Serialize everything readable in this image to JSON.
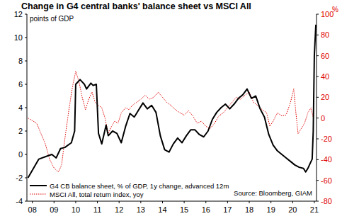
{
  "chart_data": {
    "type": "line",
    "title": "Change in G4 central banks' balance sheet vs MSCI All",
    "ylabel": "points of GDP",
    "y2label": "%",
    "source": "Source: Bloomberg, GIAM",
    "legend": "bottom-left",
    "grid": false,
    "xlim": [
      2007.75,
      2021.1
    ],
    "xticks": [
      {
        "value": 2008,
        "label": "08"
      },
      {
        "value": 2009,
        "label": "09"
      },
      {
        "value": 2010,
        "label": "10"
      },
      {
        "value": 2011,
        "label": "11"
      },
      {
        "value": 2012,
        "label": "12"
      },
      {
        "value": 2013,
        "label": "13"
      },
      {
        "value": 2014,
        "label": "14"
      },
      {
        "value": 2015,
        "label": "15"
      },
      {
        "value": 2016,
        "label": "16"
      },
      {
        "value": 2017,
        "label": "17"
      },
      {
        "value": 2018,
        "label": "18"
      },
      {
        "value": 2019,
        "label": "19"
      },
      {
        "value": 2020,
        "label": "20"
      },
      {
        "value": 2021,
        "label": "21"
      }
    ],
    "ylim": [
      -4,
      12
    ],
    "yticks": [
      -4,
      -2,
      0,
      2,
      4,
      6,
      8,
      10,
      12
    ],
    "y2lim": [
      -80,
      100
    ],
    "y2ticks": [
      -80,
      -60,
      -40,
      -20,
      0,
      20,
      40,
      60,
      80,
      100
    ],
    "series": [
      {
        "name": "G4 CB balance sheet, % of GDP, 1y change, advanced 12m",
        "color": "#000000",
        "line_style": "solid",
        "x": [
          2007.8,
          2008.3,
          2008.6,
          2008.9,
          2009.1,
          2009.3,
          2009.5,
          2009.8,
          2009.95,
          2010.0,
          2010.2,
          2010.4,
          2010.5,
          2010.7,
          2010.8,
          2010.95,
          2011.05,
          2011.2,
          2011.4,
          2011.5,
          2011.7,
          2011.9,
          2012.1,
          2012.3,
          2012.5,
          2012.7,
          2012.9,
          2013.1,
          2013.3,
          2013.5,
          2013.7,
          2013.9,
          2014.1,
          2014.3,
          2014.5,
          2014.7,
          2014.9,
          2015.1,
          2015.3,
          2015.5,
          2015.7,
          2015.9,
          2016.1,
          2016.3,
          2016.5,
          2016.7,
          2016.9,
          2017.1,
          2017.3,
          2017.5,
          2017.7,
          2017.9,
          2018.1,
          2018.3,
          2018.5,
          2018.7,
          2018.9,
          2019.1,
          2019.3,
          2019.5,
          2019.7,
          2019.9,
          2020.1,
          2020.3,
          2020.5,
          2020.6,
          2020.7,
          2020.8,
          2020.9,
          2020.95,
          2021.0,
          2021.07
        ],
        "values": [
          -2.0,
          -0.4,
          -0.2,
          0.0,
          -0.3,
          0.5,
          0.6,
          1.0,
          2.0,
          6.0,
          6.4,
          6.0,
          5.6,
          6.1,
          5.9,
          6.0,
          1.8,
          0.9,
          2.5,
          1.6,
          2.0,
          1.8,
          1.0,
          2.4,
          3.5,
          3.2,
          3.8,
          4.4,
          3.9,
          4.2,
          3.6,
          1.6,
          0.4,
          0.2,
          0.9,
          1.4,
          1.0,
          1.6,
          2.1,
          2.1,
          1.7,
          1.5,
          2.0,
          3.0,
          3.6,
          4.0,
          4.3,
          3.9,
          4.3,
          4.8,
          5.1,
          5.6,
          4.8,
          5.0,
          3.9,
          3.2,
          1.7,
          0.8,
          0.3,
          0.0,
          -0.3,
          -0.6,
          -0.9,
          -1.1,
          -1.2,
          -1.5,
          -1.2,
          -0.8,
          -0.4,
          2.0,
          8.5,
          11.1
        ]
      },
      {
        "name": "MSCI All, total return index, yoy",
        "color": "#e00000",
        "line_style": "dotted",
        "axis": "y2",
        "x": [
          2007.8,
          2008.2,
          2008.4,
          2008.6,
          2008.8,
          2009.0,
          2009.2,
          2009.35,
          2009.5,
          2009.7,
          2009.85,
          2010.0,
          2010.15,
          2010.3,
          2010.45,
          2010.6,
          2010.75,
          2010.9,
          2011.05,
          2011.2,
          2011.35,
          2011.5,
          2011.65,
          2011.8,
          2011.95,
          2012.1,
          2012.3,
          2012.45,
          2012.6,
          2012.8,
          2013.0,
          2013.2,
          2013.4,
          2013.6,
          2013.8,
          2014.0,
          2014.2,
          2014.4,
          2014.6,
          2014.8,
          2015.0,
          2015.2,
          2015.4,
          2015.6,
          2015.8,
          2016.0,
          2016.2,
          2016.4,
          2016.6,
          2016.8,
          2017.0,
          2017.2,
          2017.4,
          2017.6,
          2017.8,
          2018.0,
          2018.2,
          2018.4,
          2018.6,
          2018.8,
          2018.95,
          2019.1,
          2019.3,
          2019.5,
          2019.7,
          2019.9,
          2020.05,
          2020.15,
          2020.25,
          2020.4,
          2020.55,
          2020.7,
          2020.85,
          2020.95
        ],
        "values": [
          0,
          -5,
          -15,
          -25,
          -40,
          -48,
          -52,
          -45,
          -20,
          10,
          30,
          45,
          35,
          20,
          8,
          18,
          25,
          15,
          12,
          10,
          0,
          -15,
          -8,
          -3,
          -5,
          5,
          10,
          8,
          12,
          15,
          18,
          22,
          18,
          20,
          25,
          20,
          15,
          12,
          8,
          5,
          3,
          7,
          2,
          -5,
          -3,
          -8,
          -10,
          -5,
          2,
          5,
          10,
          15,
          20,
          18,
          22,
          25,
          15,
          12,
          8,
          5,
          -8,
          -3,
          5,
          2,
          3,
          15,
          28,
          5,
          -15,
          -10,
          -5,
          5,
          10,
          0
        ]
      }
    ]
  }
}
